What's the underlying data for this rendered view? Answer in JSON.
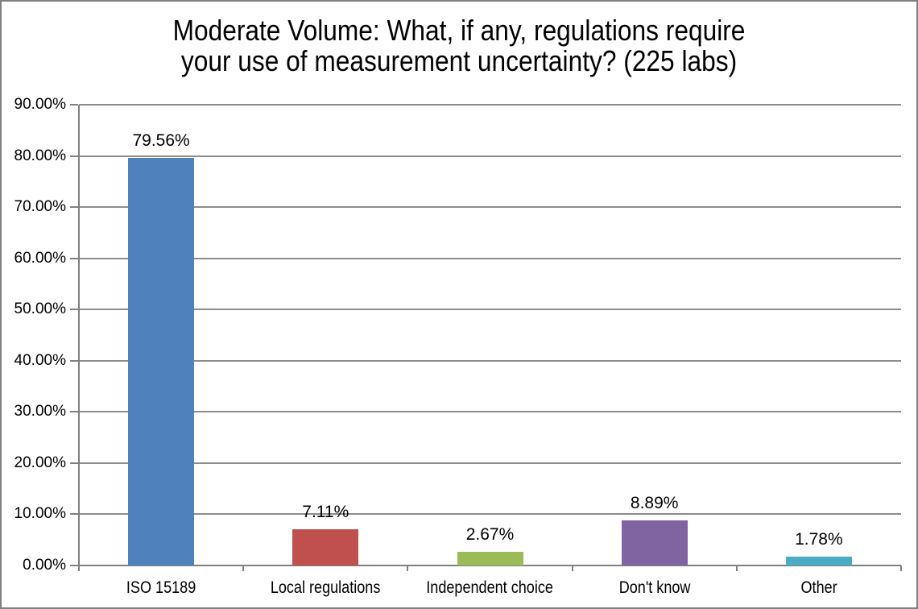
{
  "header": {
    "title_lines": [
      "Moderate Volume: What, if any, regulations require",
      "your use of measurement uncertainty? (225 labs)"
    ]
  },
  "chart_data": {
    "type": "bar",
    "title": "Moderate Volume: What, if any, regulations require your use of measurement uncertainty? (225 labs)",
    "categories": [
      "ISO 15189",
      "Local regulations",
      "Independent choice",
      "Don't know",
      "Other"
    ],
    "values": [
      79.56,
      7.11,
      2.67,
      8.89,
      1.78
    ],
    "data_labels": [
      "79.56%",
      "7.11%",
      "2.67%",
      "8.89%",
      "1.78%"
    ],
    "bar_colors": [
      "#4F81BD",
      "#C0504D",
      "#9BBB59",
      "#8064A2",
      "#4BACC6"
    ],
    "xlabel": "",
    "ylabel": "",
    "ylim": [
      0,
      90
    ],
    "ytick_step": 10,
    "ytick_labels": [
      "0.00%",
      "10.00%",
      "20.00%",
      "30.00%",
      "40.00%",
      "50.00%",
      "60.00%",
      "70.00%",
      "80.00%",
      "90.00%"
    ],
    "grid": "horizontal",
    "legend": "none",
    "colors": {
      "gridline": "#8C8C8C",
      "axis": "#808080",
      "tick": "#808080",
      "frame_border": "#808080",
      "background": "#FFFFFF",
      "text": "#000000"
    }
  }
}
